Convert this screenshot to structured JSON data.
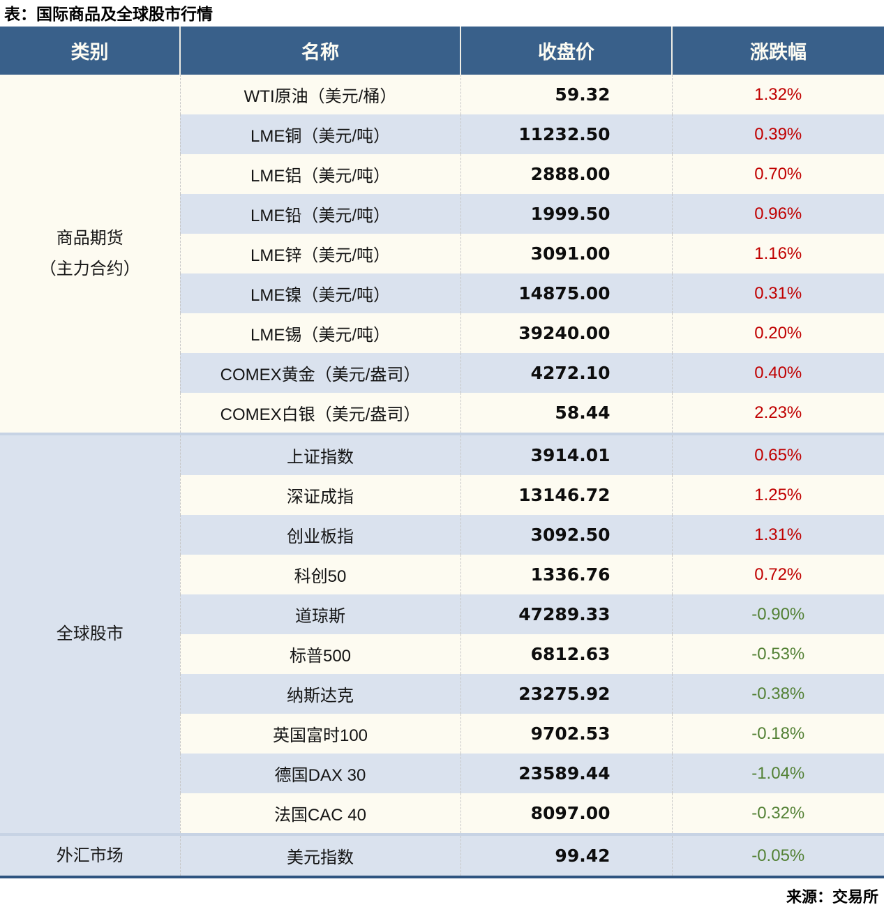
{
  "title": "表：国际商品及全球股市行情",
  "source": "来源：交易所",
  "colors": {
    "header_bg": "#39608A",
    "header_text": "#FDFCF3",
    "row_plain": "#FDFBF1",
    "row_stripe": "#DAE2EE",
    "up_red": "#C00000",
    "down_green": "#538135",
    "section_divider": "#C7D3E4",
    "bottom_rule": "#2E5480"
  },
  "chart_data": {
    "type": "table",
    "title": "表：国际商品及全球股市行情",
    "columns": [
      "类别",
      "名称",
      "收盘价",
      "涨跌幅"
    ],
    "sections": [
      {
        "category": [
          "商品期货",
          "（主力合约）"
        ],
        "rows": [
          {
            "name": "WTI原油（美元/桶）",
            "close": "59.32",
            "change": "1.32%"
          },
          {
            "name": "LME铜（美元/吨）",
            "close": "11232.50",
            "change": "0.39%"
          },
          {
            "name": "LME铝（美元/吨）",
            "close": "2888.00",
            "change": "0.70%"
          },
          {
            "name": "LME铅（美元/吨）",
            "close": "1999.50",
            "change": "0.96%"
          },
          {
            "name": "LME锌（美元/吨）",
            "close": "3091.00",
            "change": "1.16%"
          },
          {
            "name": "LME镍（美元/吨）",
            "close": "14875.00",
            "change": "0.31%"
          },
          {
            "name": "LME锡（美元/吨）",
            "close": "39240.00",
            "change": "0.20%"
          },
          {
            "name": "COMEX黄金（美元/盎司）",
            "close": "4272.10",
            "change": "0.40%"
          },
          {
            "name": "COMEX白银（美元/盎司）",
            "close": "58.44",
            "change": "2.23%"
          }
        ]
      },
      {
        "category": [
          "全球股市"
        ],
        "rows": [
          {
            "name": "上证指数",
            "close": "3914.01",
            "change": "0.65%"
          },
          {
            "name": "深证成指",
            "close": "13146.72",
            "change": "1.25%"
          },
          {
            "name": "创业板指",
            "close": "3092.50",
            "change": "1.31%"
          },
          {
            "name": "科创50",
            "close": "1336.76",
            "change": "0.72%"
          },
          {
            "name": "道琼斯",
            "close": "47289.33",
            "change": "-0.90%"
          },
          {
            "name": "标普500",
            "close": "6812.63",
            "change": "-0.53%"
          },
          {
            "name": "纳斯达克",
            "close": "23275.92",
            "change": "-0.38%"
          },
          {
            "name": "英国富时100",
            "close": "9702.53",
            "change": "-0.18%"
          },
          {
            "name": "德国DAX 30",
            "close": "23589.44",
            "change": "-1.04%"
          },
          {
            "name": "法国CAC 40",
            "close": "8097.00",
            "change": "-0.32%"
          }
        ]
      },
      {
        "category": [
          "外汇市场"
        ],
        "rows": [
          {
            "name": "美元指数",
            "close": "99.42",
            "change": "-0.05%"
          }
        ]
      }
    ]
  }
}
